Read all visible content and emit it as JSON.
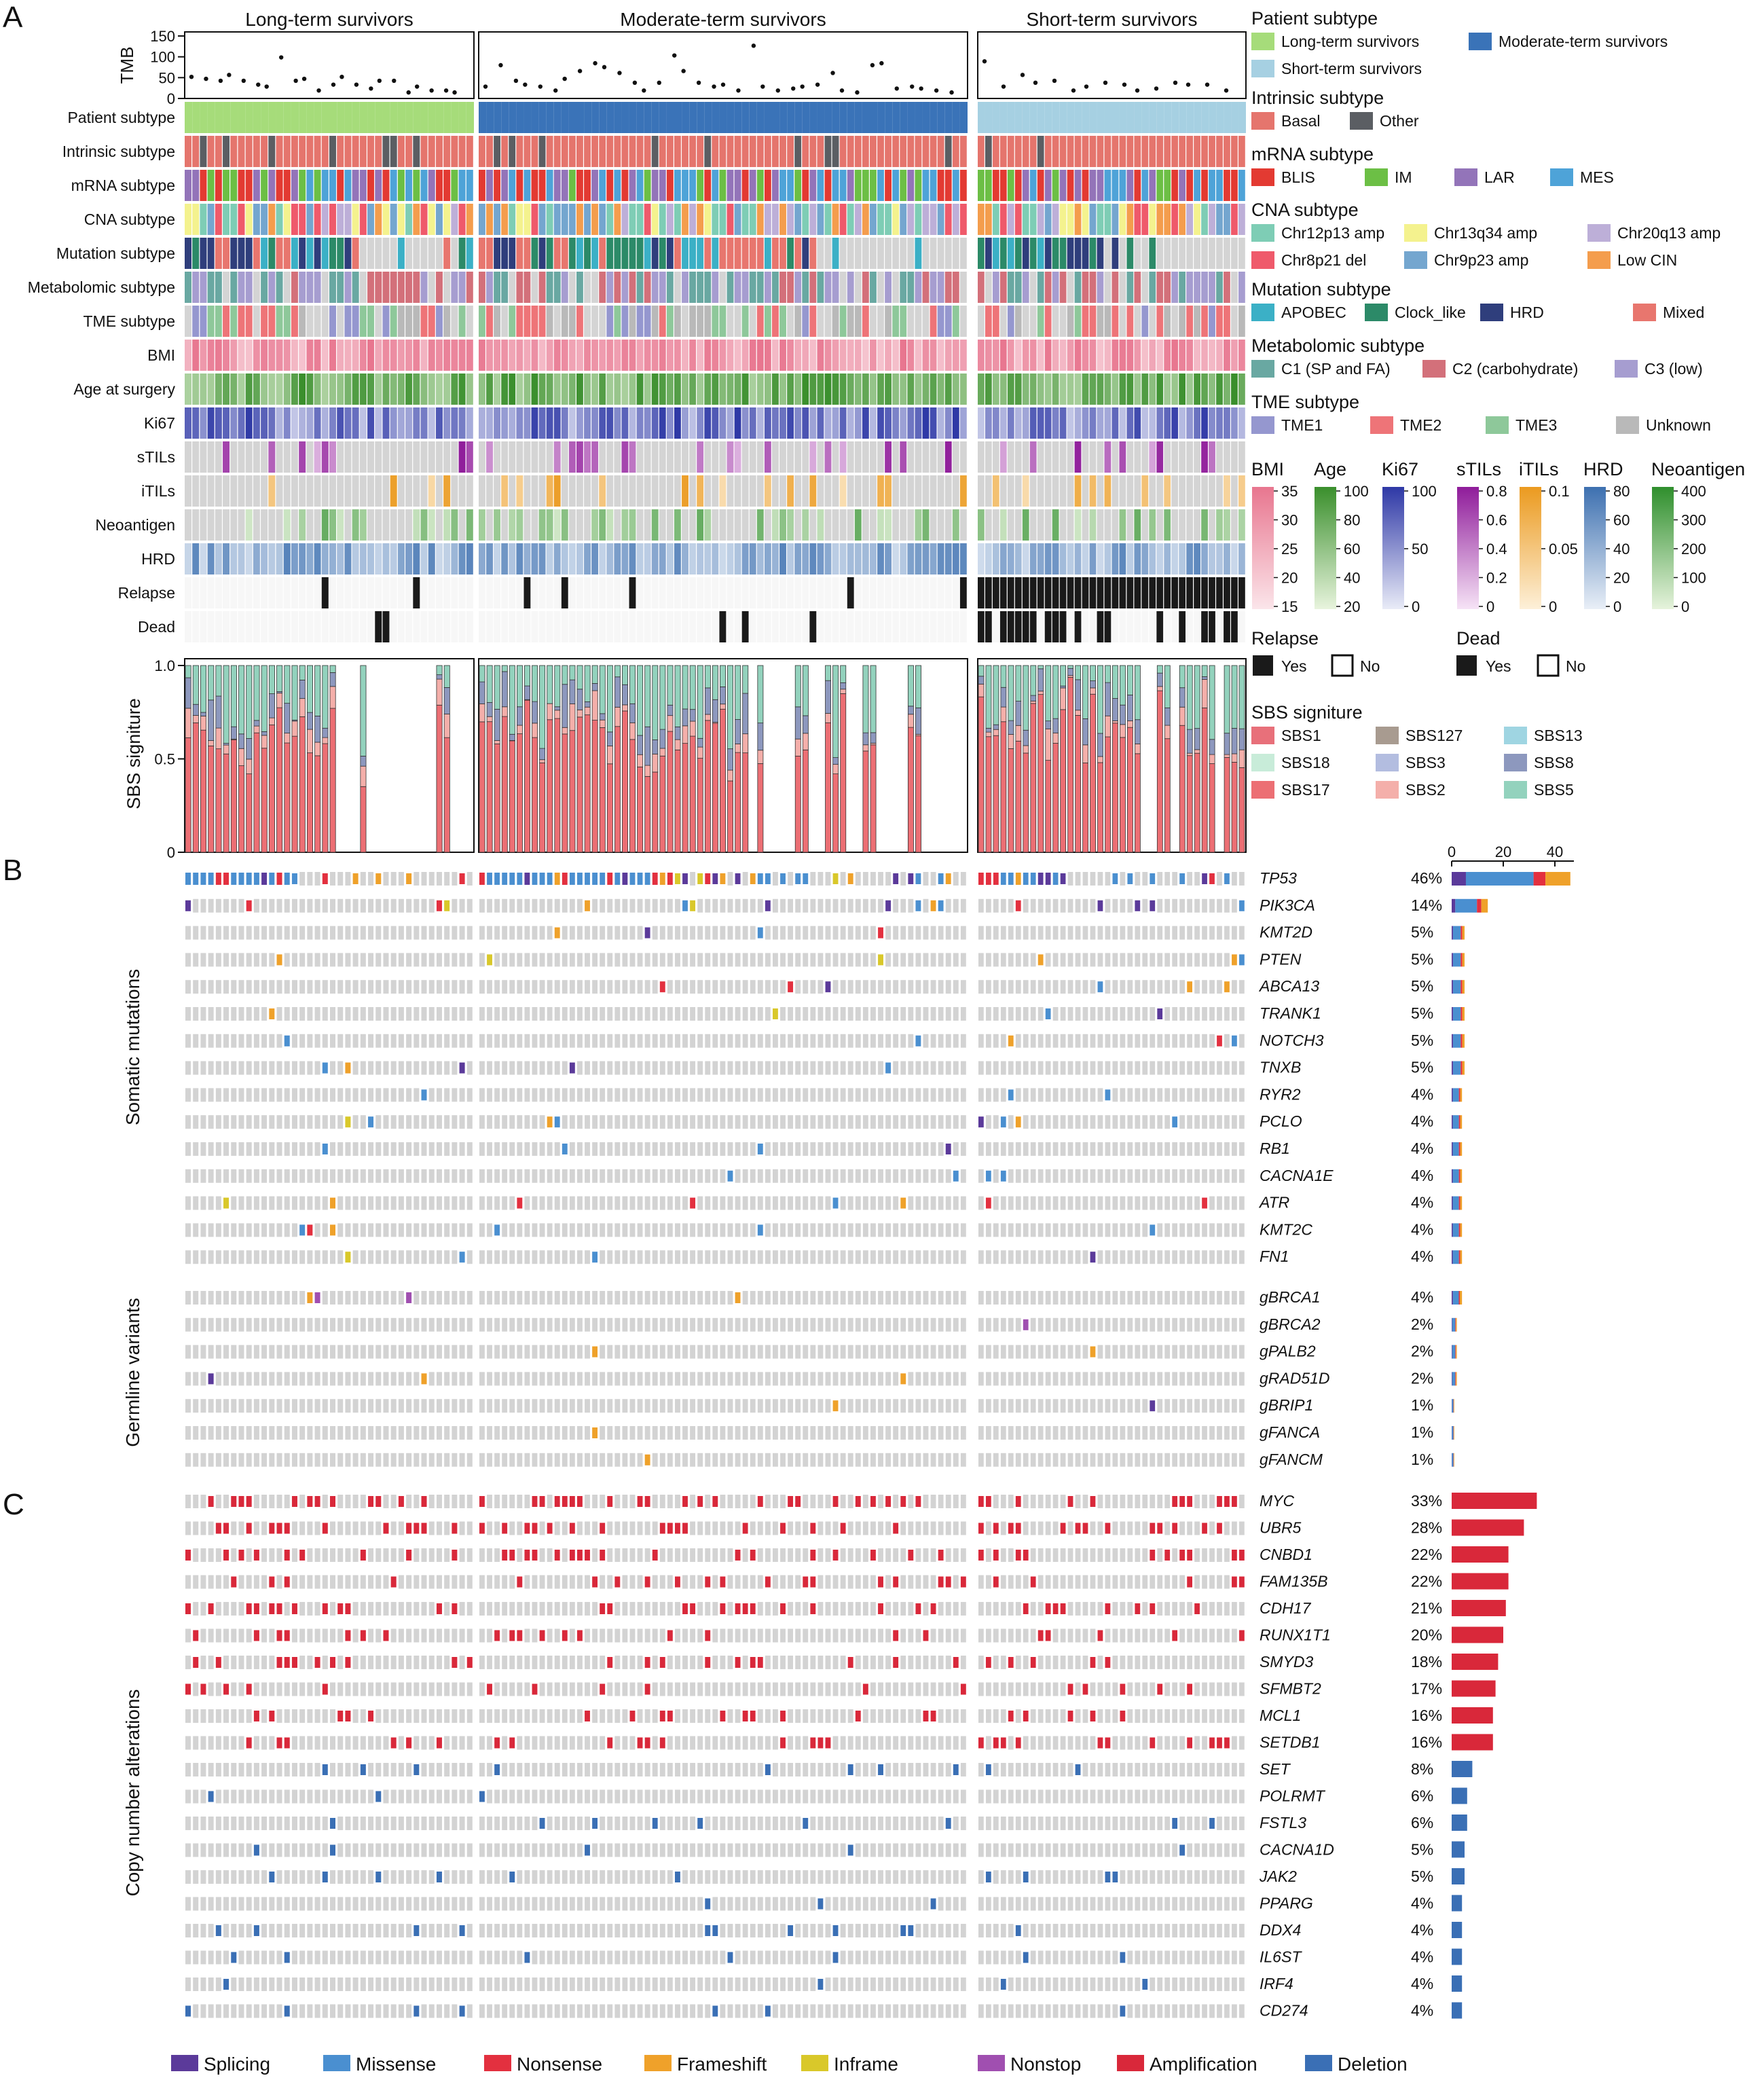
{
  "figure": {
    "panel_labels": [
      "A",
      "B",
      "C"
    ],
    "groups": [
      "Long-term survivors",
      "Moderate-term survivors",
      "Short-term survivors"
    ],
    "track_labels": [
      "Patient subtype",
      "Intrinsic subtype",
      "mRNA subtype",
      "CNA subtype",
      "Mutation subtype",
      "Metabolomic subtype",
      "TME subtype",
      "BMI",
      "Age at surgery",
      "Ki67",
      "sTILs",
      "iTILs",
      "Neoantigen",
      "HRD",
      "Relapse",
      "Dead"
    ],
    "tmb_label": "TMB",
    "tmb_ticks": [
      "150",
      "100",
      "50",
      "0"
    ],
    "sbs_axis_label": "SBS signiture",
    "sbs_ticks": [
      "1.0",
      "0.5",
      "0"
    ],
    "somatic_label": "Somatic mutations",
    "germline_label": "Germline variants",
    "cna_label": "Copy number alterations",
    "bar_ticks": [
      "0",
      "20",
      "40"
    ]
  },
  "legend": {
    "patient_subtype": {
      "title": "Patient subtype",
      "items": [
        {
          "label": "Long-term survivors",
          "color": "#a6dc7a"
        },
        {
          "label": "Moderate-term survivors",
          "color": "#3a73b8"
        },
        {
          "label": "Short-term survivors",
          "color": "#a6d0e2"
        }
      ]
    },
    "intrinsic_subtype": {
      "title": "Intrinsic subtype",
      "items": [
        {
          "label": "Basal",
          "color": "#e5756d"
        },
        {
          "label": "Other",
          "color": "#5b5e63"
        }
      ]
    },
    "mrna_subtype": {
      "title": "mRNA subtype",
      "items": [
        {
          "label": "BLIS",
          "color": "#e33a32"
        },
        {
          "label": "IM",
          "color": "#6cbf45"
        },
        {
          "label": "LAR",
          "color": "#9374b9"
        },
        {
          "label": "MES",
          "color": "#4ea3d8"
        }
      ]
    },
    "cna_subtype": {
      "title": "CNA subtype",
      "items": [
        {
          "label": "Chr12p13 amp",
          "color": "#7ecdb5"
        },
        {
          "label": "Chr13q34 amp",
          "color": "#f4f28e"
        },
        {
          "label": "Chr20q13 amp",
          "color": "#bdafd8"
        },
        {
          "label": "Chr8p21 del",
          "color": "#ef5a6b"
        },
        {
          "label": "Chr9p23 amp",
          "color": "#74a6cf"
        },
        {
          "label": "Low CIN",
          "color": "#f49d4d"
        }
      ]
    },
    "mutation_subtype": {
      "title": "Mutation subtype",
      "items": [
        {
          "label": "APOBEC",
          "color": "#3bb0c6"
        },
        {
          "label": "Clock_like",
          "color": "#2c8a68"
        },
        {
          "label": "HRD",
          "color": "#2f3e7c"
        },
        {
          "label": "Mixed",
          "color": "#e8766e"
        }
      ]
    },
    "metabolomic_subtype": {
      "title": "Metabolomic subtype",
      "items": [
        {
          "label": "C1 (SP and FA)",
          "color": "#69a8a2"
        },
        {
          "label": "C2 (carbohydrate)",
          "color": "#d3707a"
        },
        {
          "label": "C3 (low)",
          "color": "#a69dd0"
        }
      ]
    },
    "tme_subtype": {
      "title": "TME subtype",
      "items": [
        {
          "label": "TME1",
          "color": "#9597cf"
        },
        {
          "label": "TME2",
          "color": "#ee7478"
        },
        {
          "label": "TME3",
          "color": "#8ec89a"
        },
        {
          "label": "Unknown",
          "color": "#b9b9b9"
        }
      ]
    },
    "continuous": [
      {
        "title": "BMI",
        "ticks": [
          "35",
          "30",
          "25",
          "20",
          "15"
        ],
        "color_high": "#e8768f",
        "color_low": "#fbe5ea"
      },
      {
        "title": "Age",
        "ticks": [
          "100",
          "80",
          "60",
          "40",
          "20"
        ],
        "color_high": "#3a8f2c",
        "color_low": "#e8f4dd"
      },
      {
        "title": "Ki67",
        "ticks": [
          "100",
          "50",
          "0"
        ],
        "color_high": "#2e38a6",
        "color_low": "#e9ebf7"
      },
      {
        "title": "sTILs",
        "ticks": [
          "0.8",
          "0.6",
          "0.4",
          "0.2",
          "0"
        ],
        "color_high": "#8f1c9a",
        "color_low": "#f6e3f6"
      },
      {
        "title": "iTILs",
        "ticks": [
          "0.1",
          "0.05",
          "0"
        ],
        "color_high": "#eb9a1f",
        "color_low": "#fdf0d9"
      },
      {
        "title": "HRD",
        "ticks": [
          "80",
          "60",
          "40",
          "20",
          "0"
        ],
        "color_high": "#3d70b0",
        "color_low": "#e9eff7"
      },
      {
        "title": "Neoantigen",
        "ticks": [
          "400",
          "300",
          "200",
          "100",
          "0"
        ],
        "color_high": "#2f8f2d",
        "color_low": "#e6f3dc"
      }
    ],
    "relapse": {
      "title": "Relapse",
      "items": [
        "Yes",
        "No"
      ]
    },
    "dead": {
      "title": "Dead",
      "items": [
        "Yes",
        "No"
      ]
    },
    "sbs": {
      "title": "SBS signiture",
      "items": [
        {
          "label": "SBS1",
          "color": "#e8707a"
        },
        {
          "label": "SBS127",
          "color": "#a89b90"
        },
        {
          "label": "SBS13",
          "color": "#9fd5e2"
        },
        {
          "label": "SBS18",
          "color": "#c8ecd9"
        },
        {
          "label": "SBS3",
          "color": "#b3bde0"
        },
        {
          "label": "SBS8",
          "color": "#8d98be"
        },
        {
          "label": "SBS17",
          "color": "#ec6f74"
        },
        {
          "label": "SBS2",
          "color": "#f4afaa"
        },
        {
          "label": "SBS5",
          "color": "#93d2bd"
        }
      ]
    }
  },
  "alteration_legend": [
    {
      "label": "Splicing",
      "color": "#5b3a9a"
    },
    {
      "label": "Missense",
      "color": "#4a8fd0"
    },
    {
      "label": "Nonsense",
      "color": "#e3303f"
    },
    {
      "label": "Frameshift",
      "color": "#efa12a"
    },
    {
      "label": "Inframe",
      "color": "#d9c82a"
    },
    {
      "label": "Nonstop",
      "color": "#a04fb0"
    },
    {
      "label": "Amplification",
      "color": "#d9283a"
    },
    {
      "label": "Deletion",
      "color": "#3a6fb5"
    }
  ],
  "chart_data": [
    {
      "type": "scatter",
      "title": "TMB",
      "ylim": [
        0,
        150
      ],
      "values": {
        "Long-term survivors": [
          45,
          40,
          35,
          50,
          35,
          25,
          20,
          95,
          35,
          40,
          10,
          25,
          45,
          25,
          15,
          35,
          35,
          5,
          20,
          10,
          10,
          5
        ],
        "Moderate-term survivors": [
          20,
          75,
          35,
          25,
          20,
          10,
          40,
          60,
          80,
          70,
          55,
          30,
          10,
          30,
          100,
          60,
          30,
          20,
          25,
          10,
          125,
          20,
          10,
          15,
          20,
          25,
          55,
          10,
          5,
          75,
          80,
          15,
          20,
          15,
          10,
          5
        ],
        "Short-term survivors": [
          85,
          20,
          50,
          30,
          35,
          10,
          20,
          30,
          25,
          10,
          15,
          30,
          25,
          25,
          10
        ]
      }
    },
    {
      "type": "table",
      "title": "Somatic mutations",
      "genes": [
        "TP53",
        "PIK3CA",
        "KMT2D",
        "PTEN",
        "ABCA13",
        "TRANK1",
        "NOTCH3",
        "TNXB",
        "RYR2",
        "PCLO",
        "RB1",
        "CACNA1E",
        "ATR",
        "KMT2C",
        "FN1"
      ],
      "percent": [
        "46%",
        "14%",
        "5%",
        "5%",
        "5%",
        "5%",
        "5%",
        "5%",
        "4%",
        "4%",
        "4%",
        "4%",
        "4%",
        "4%",
        "4%"
      ],
      "bar_values": [
        46,
        14,
        5,
        5,
        5,
        5,
        5,
        5,
        4,
        4,
        4,
        4,
        4,
        4,
        4
      ]
    },
    {
      "type": "table",
      "title": "Germline variants",
      "genes": [
        "gBRCA1",
        "gBRCA2",
        "gPALB2",
        "gRAD51D",
        "gBRIP1",
        "gFANCA",
        "gFANCM"
      ],
      "percent": [
        "4%",
        "2%",
        "2%",
        "2%",
        "1%",
        "1%",
        "1%"
      ],
      "bar_values": [
        4,
        2,
        2,
        2,
        1,
        1,
        1
      ]
    },
    {
      "type": "table",
      "title": "Copy number alterations",
      "genes": [
        "MYC",
        "UBR5",
        "CNBD1",
        "FAM135B",
        "CDH17",
        "RUNX1T1",
        "SMYD3",
        "SFMBT2",
        "MCL1",
        "SETDB1",
        "SET",
        "POLRMT",
        "FSTL3",
        "CACNA1D",
        "JAK2",
        "PPARG",
        "DDX4",
        "IL6ST",
        "IRF4",
        "CD274"
      ],
      "percent": [
        "33%",
        "28%",
        "22%",
        "22%",
        "21%",
        "20%",
        "18%",
        "17%",
        "16%",
        "16%",
        "8%",
        "6%",
        "6%",
        "5%",
        "5%",
        "4%",
        "4%",
        "4%",
        "4%",
        "4%"
      ],
      "bar_values": [
        33,
        28,
        22,
        22,
        21,
        20,
        18,
        17,
        16,
        16,
        8,
        6,
        6,
        5,
        5,
        4,
        4,
        4,
        4,
        4
      ]
    }
  ]
}
